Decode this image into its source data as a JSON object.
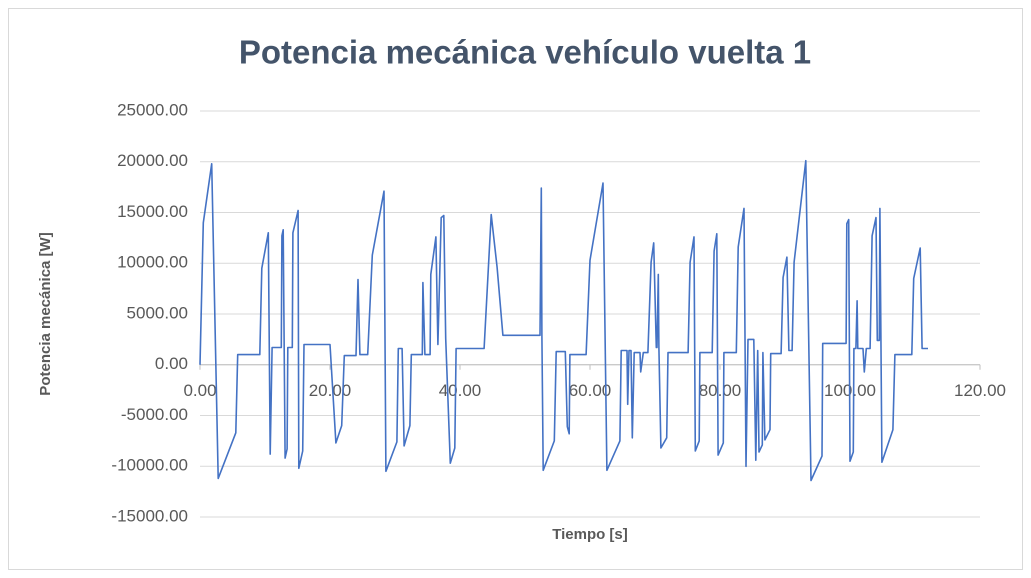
{
  "chart_data": {
    "type": "line",
    "title": "Potencia mecánica vehículo vuelta 1",
    "x_label": "Tiempo [s]",
    "y_label": "Potencia mecánica [W]",
    "xlim": [
      0,
      120
    ],
    "ylim": [
      -15000,
      25000
    ],
    "xticks": [
      {
        "value": 0,
        "label": "0.00"
      },
      {
        "value": 20,
        "label": "20.00"
      },
      {
        "value": 40,
        "label": "40.00"
      },
      {
        "value": 60,
        "label": "60.00"
      },
      {
        "value": 80,
        "label": "80.00"
      },
      {
        "value": 100,
        "label": "100.00"
      },
      {
        "value": 120,
        "label": "120.00"
      }
    ],
    "yticks": [
      {
        "value": -15000,
        "label": "-15000.00"
      },
      {
        "value": -10000,
        "label": "-10000.00"
      },
      {
        "value": -5000,
        "label": "-5000.00"
      },
      {
        "value": 0,
        "label": "0.00"
      },
      {
        "value": 5000,
        "label": "5000.00"
      },
      {
        "value": 10000,
        "label": "10000.00"
      },
      {
        "value": 15000,
        "label": "15000.00"
      },
      {
        "value": 20000,
        "label": "20000.00"
      },
      {
        "value": 25000,
        "label": "25000.00"
      }
    ],
    "grid": true,
    "series": [
      {
        "color": "#4472c4",
        "x": [
          0,
          0.5,
          1.8,
          2.8,
          5.5,
          5.8,
          9.2,
          9.5,
          10.5,
          10.8,
          11.1,
          12.5,
          12.6,
          12.8,
          13.1,
          13.4,
          13.5,
          14.2,
          14.3,
          15.1,
          15.2,
          15.8,
          16,
          20,
          20.9,
          21.8,
          22.2,
          24,
          24.3,
          24.6,
          25.8,
          26.5,
          28.3,
          28.6,
          30.3,
          30.5,
          31.1,
          31.4,
          32.3,
          32.5,
          34.2,
          34.3,
          34.6,
          35.4,
          35.5,
          36.3,
          36.6,
          37.1,
          37.5,
          37.8,
          38.5,
          39.2,
          39.4,
          43.7,
          44.8,
          45.7,
          46.6,
          52.3,
          52.5,
          52.6,
          52.8,
          54.5,
          54.8,
          56.2,
          56.5,
          56.8,
          56.9,
          59.4,
          60,
          62,
          62.6,
          64.6,
          64.8,
          65.7,
          65.8,
          66,
          66.3,
          66.5,
          66.8,
          67.7,
          67.8,
          68.2,
          68.9,
          69.4,
          69.8,
          70.2,
          70.3,
          70.5,
          70.6,
          70.9,
          71.8,
          72,
          75.1,
          75.4,
          76,
          76.2,
          76.8,
          76.9,
          78.8,
          79.1,
          79.5,
          79.7,
          80.5,
          80.6,
          82.5,
          82.8,
          83.7,
          84,
          84.3,
          85.2,
          85.5,
          85.8,
          86,
          86.5,
          86.6,
          86.9,
          87.7,
          87.8,
          89.4,
          89.7,
          90.3,
          90.6,
          91.1,
          91.4,
          93.2,
          94,
          95.7,
          95.8,
          99.4,
          99.5,
          99.8,
          100,
          100.5,
          100.6,
          100.9,
          101.1,
          101.2,
          102,
          102.2,
          102.5,
          103.1,
          103.4,
          104,
          104.2,
          104.5,
          104.6,
          104.9,
          106.6,
          106.9,
          109.5,
          109.8,
          110.8,
          111.1,
          112
        ],
        "values": [
          0,
          14000,
          19800,
          -11200,
          -6700,
          1000,
          1000,
          9500,
          13000,
          -8800,
          1700,
          1700,
          12700,
          13300,
          -9200,
          -8300,
          1700,
          1700,
          13000,
          15200,
          -10200,
          -8500,
          2000,
          2000,
          -7700,
          -6000,
          900,
          900,
          8400,
          1000,
          1000,
          10800,
          17100,
          -10500,
          -7600,
          1600,
          1600,
          -8000,
          -6000,
          1000,
          1000,
          8100,
          1000,
          1000,
          8900,
          12600,
          2000,
          14500,
          14700,
          2600,
          -9700,
          -8200,
          1600,
          1600,
          14800,
          9600,
          2900,
          2900,
          17400,
          2900,
          -10400,
          -7500,
          1300,
          1300,
          -6100,
          -6800,
          1000,
          1000,
          10300,
          17900,
          -10400,
          -7500,
          1400,
          1400,
          -3900,
          1400,
          1400,
          -7200,
          1200,
          1200,
          -700,
          1200,
          1200,
          10100,
          12000,
          1700,
          1700,
          8900,
          1700,
          -8200,
          -7200,
          1200,
          1200,
          10100,
          12600,
          -8500,
          -7500,
          1200,
          1200,
          11200,
          12900,
          -8900,
          -7700,
          1200,
          1200,
          11600,
          15400,
          -10000,
          2500,
          2500,
          -9400,
          1400,
          -8600,
          -7900,
          1200,
          -7400,
          -6400,
          1100,
          1100,
          8600,
          10600,
          1400,
          1400,
          10100,
          20100,
          -11400,
          -9000,
          2100,
          2100,
          13900,
          14300,
          -9500,
          -8600,
          1600,
          1600,
          6300,
          1600,
          1600,
          -700,
          1600,
          1600,
          12700,
          14500,
          2400,
          2400,
          15400,
          -9600,
          -6400,
          1000,
          1000,
          8500,
          11500,
          1600,
          1600
        ]
      }
    ]
  }
}
